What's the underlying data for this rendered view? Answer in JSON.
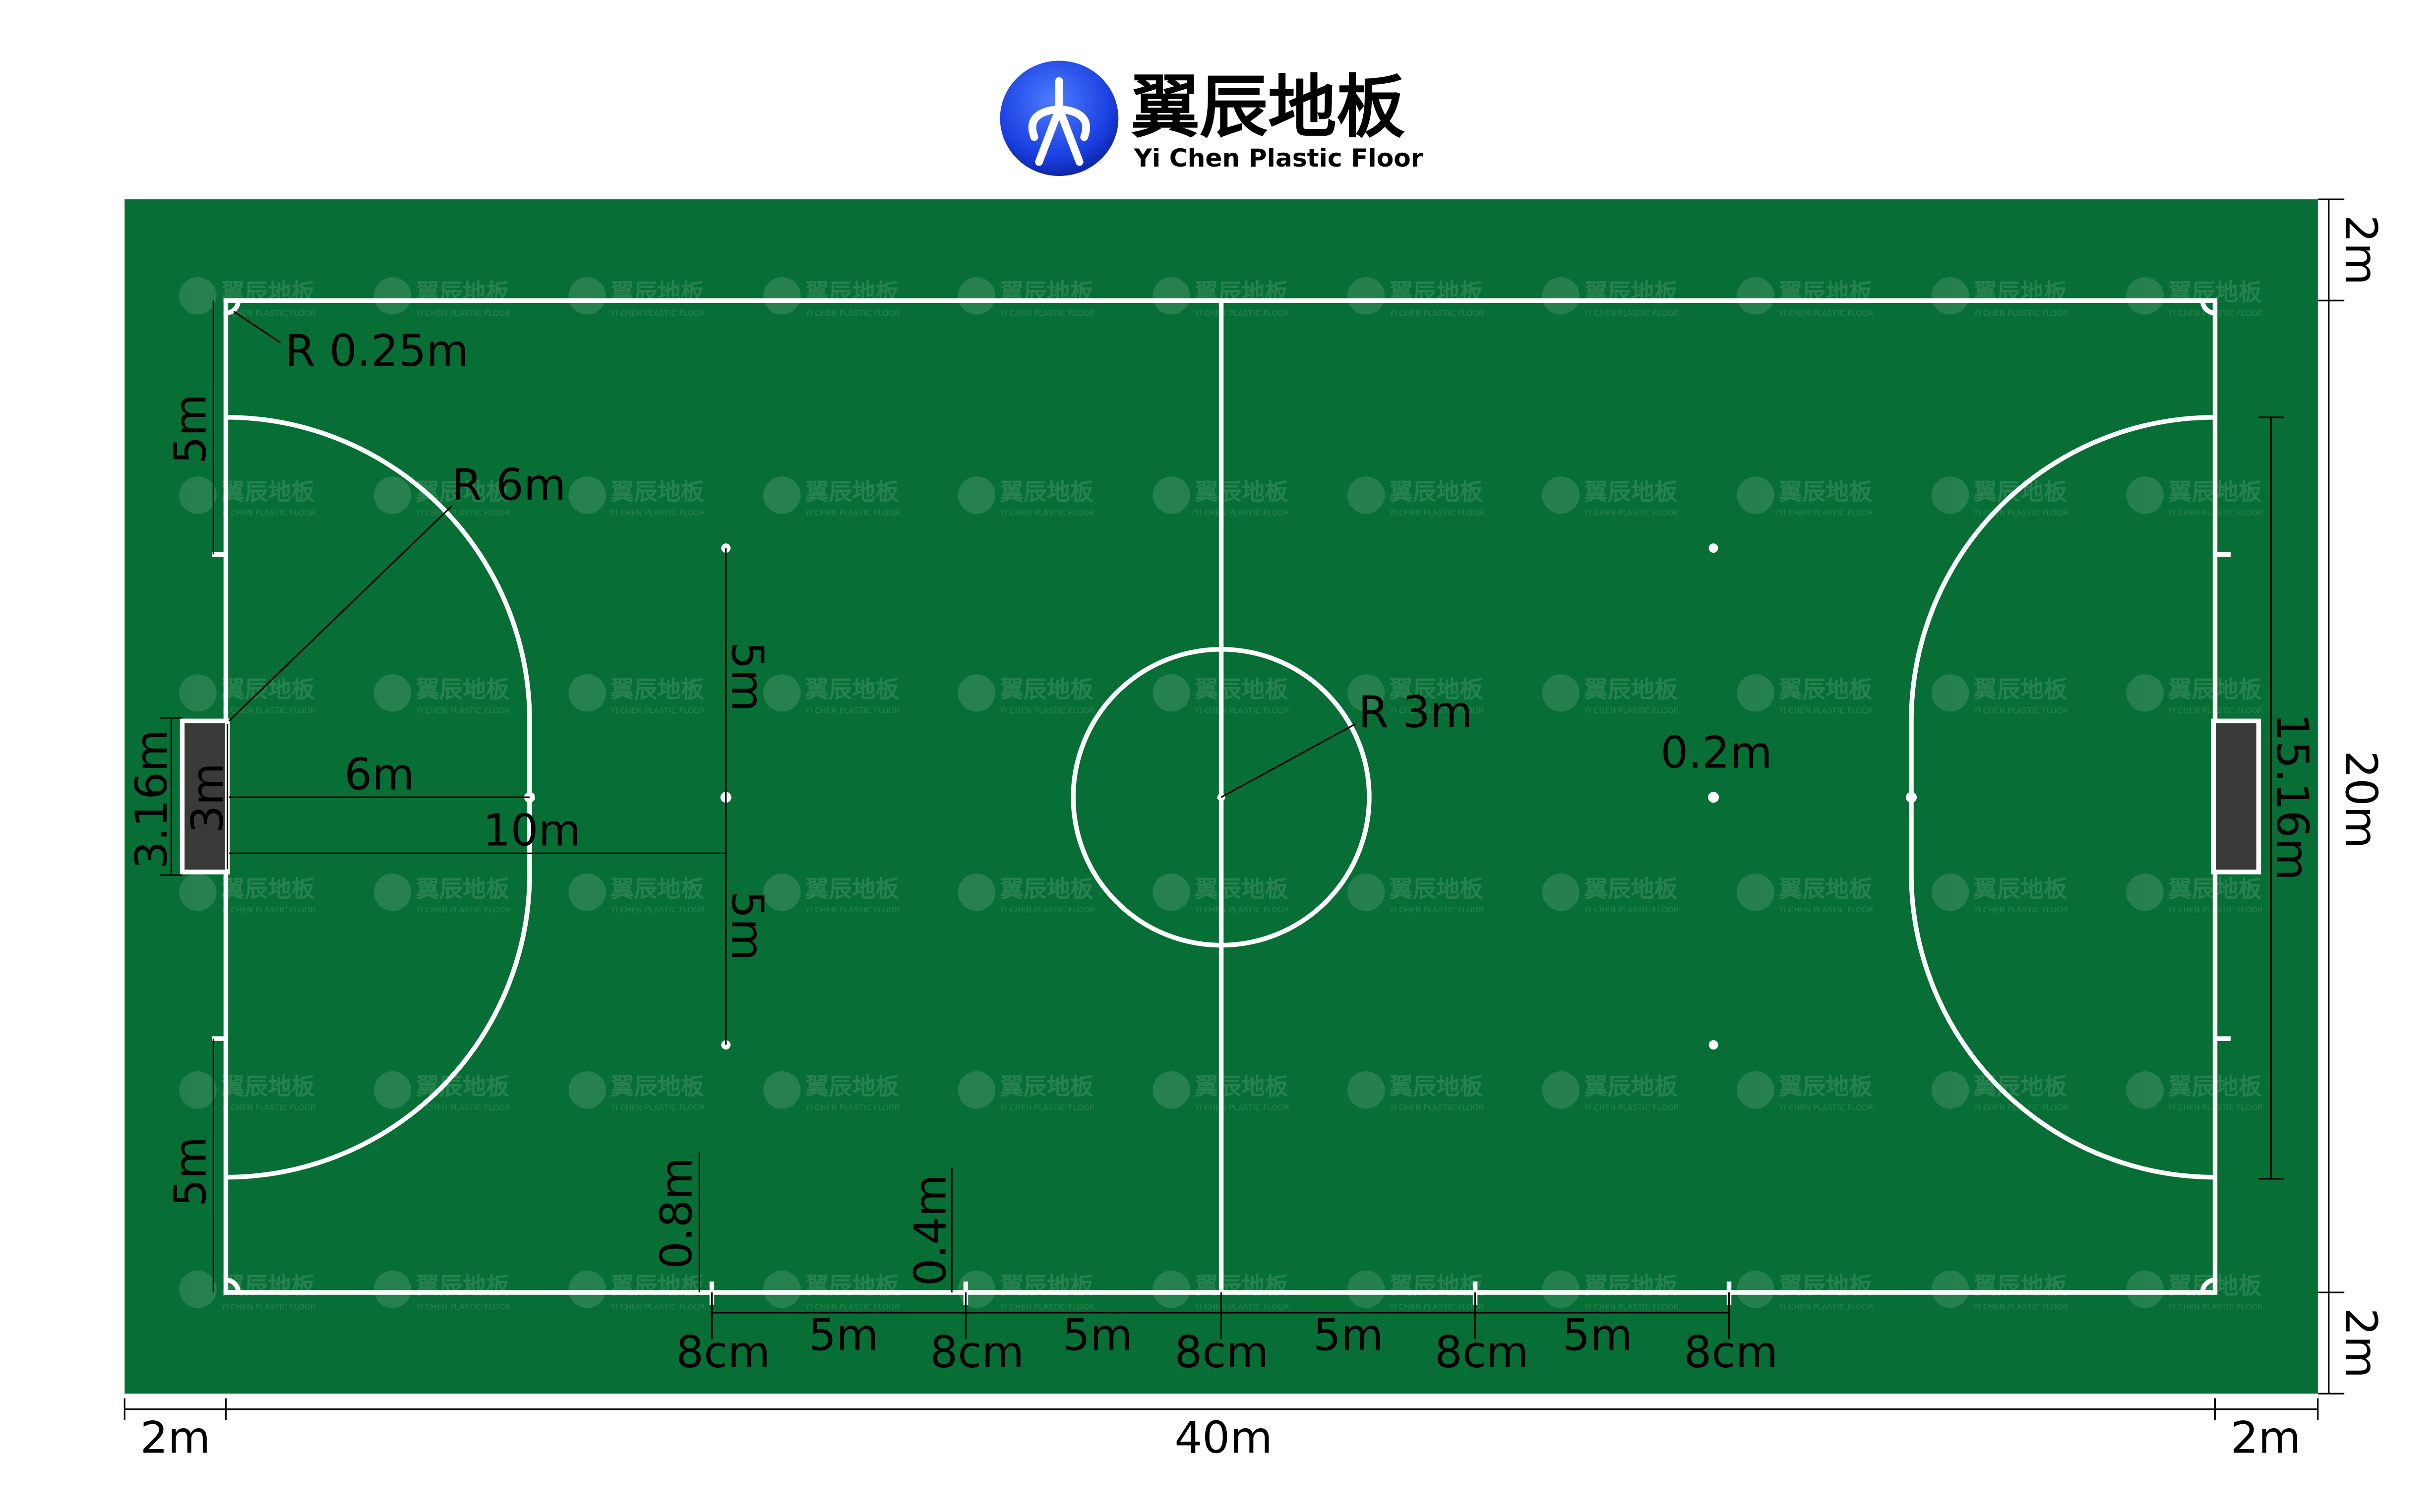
{
  "logo": {
    "name_cn": "翼辰地板",
    "name_en": "Yi Chen Plastic Floor",
    "brand_color": "#1a3fe0"
  },
  "watermark": {
    "text_cn": "翼辰地板",
    "text_en": "YI CHEN PLASTIC FLOOR"
  },
  "colors": {
    "field": "#076f35",
    "lines": "#ffffff",
    "goal": "#3a3a3a",
    "dimension": "#000000"
  },
  "labels": {
    "corner_radius": "R 0.25m",
    "left_top_5m": "5m",
    "penalty_radius": "R 6m",
    "spot_top_5m": "5m",
    "spot_bottom_5m": "5m",
    "goal_outer_width": "3.16m",
    "goal_inner_width": "3m",
    "penalty_6m": "6m",
    "second_penalty_10m": "10m",
    "center_radius": "R 3m",
    "spot_diameter": "0.2m",
    "penalty_area_width": "15.16m",
    "court_width": "20m",
    "margin_top": "2m",
    "margin_bottom_right": "2m",
    "left_bottom_5m": "5m",
    "tick_08m": "0.8m",
    "tick_04m": "0.4m",
    "sub_zone": [
      "8cm",
      "5m",
      "8cm",
      "5m",
      "8cm",
      "5m",
      "8cm",
      "5m",
      "8cm"
    ],
    "margin_left": "2m",
    "court_length": "40m",
    "margin_right": "2m"
  }
}
